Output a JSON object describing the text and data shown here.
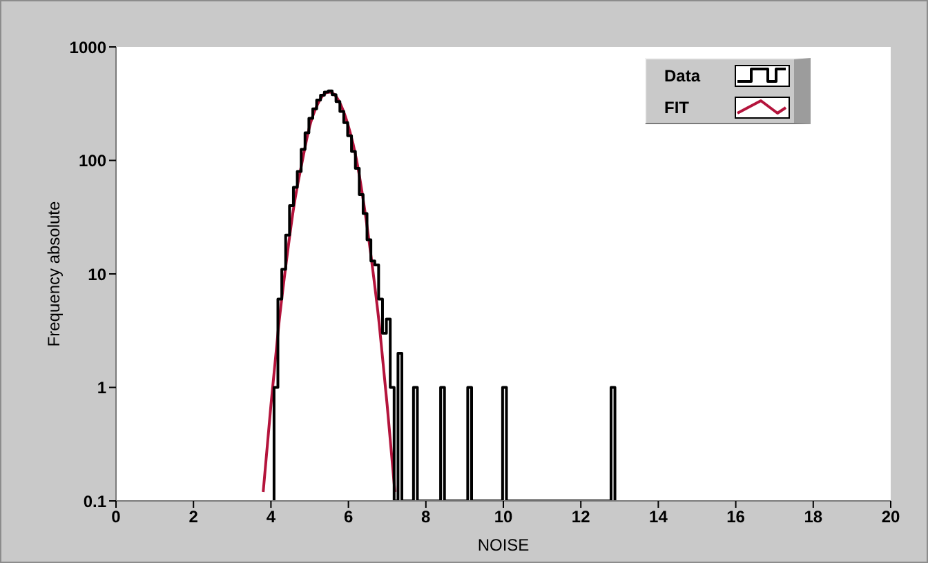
{
  "chart_data": {
    "type": "histogram",
    "xlabel": "NOISE",
    "ylabel": "Frequency absolute",
    "log": "y",
    "legend": "top right",
    "xlim": [
      0,
      20
    ],
    "xticks": [
      0,
      2,
      4,
      6,
      8,
      10,
      12,
      14,
      16,
      18,
      20
    ],
    "ylim": [
      0.1,
      1000
    ],
    "yticks": [
      0.1,
      1,
      10,
      100,
      1000
    ],
    "bins": [
      4.08,
      4.18,
      4.28,
      4.38,
      4.48,
      4.58,
      4.68,
      4.78,
      4.88,
      4.98,
      5.08,
      5.18,
      5.28,
      5.38,
      5.48,
      5.58,
      5.68,
      5.78,
      5.88,
      5.98,
      6.08,
      6.18,
      6.28,
      6.38,
      6.48,
      6.58,
      6.68,
      6.78,
      6.88,
      6.98,
      7.08,
      7.18,
      7.28,
      7.38,
      7.48,
      7.58,
      7.68,
      7.78,
      7.88,
      7.98,
      8.08,
      8.18,
      8.28,
      8.38,
      8.48,
      8.58,
      8.68,
      8.78,
      8.88,
      8.98,
      9.08,
      9.18,
      9.28,
      9.38,
      9.48,
      9.58,
      9.68,
      9.78,
      9.88,
      9.98,
      10.08,
      10.18,
      10.28,
      10.38,
      10.48,
      10.58,
      10.68,
      10.78,
      10.88,
      10.98,
      11.08,
      11.18,
      11.28,
      11.38,
      11.48,
      11.58,
      11.68,
      11.78,
      11.88,
      11.98,
      12.08,
      12.18,
      12.28,
      12.38,
      12.48,
      12.58,
      12.68,
      12.78,
      12.88
    ],
    "series": [
      {
        "name": "Data",
        "color": "#000000",
        "values": [
          1,
          6,
          11,
          22,
          40,
          58,
          80,
          125,
          175,
          235,
          285,
          340,
          375,
          400,
          410,
          380,
          330,
          270,
          215,
          165,
          120,
          85,
          50,
          34,
          20,
          13,
          12,
          6,
          3,
          4,
          1,
          0.1,
          2,
          0.1,
          0.1,
          0.1,
          1,
          0.1,
          0.1,
          0.1,
          0.1,
          0.1,
          0.1,
          1,
          0.1,
          0.1,
          0.1,
          0.1,
          0.1,
          0.1,
          1,
          0.1,
          0.1,
          0.1,
          0.1,
          0.1,
          0.1,
          0.1,
          0.1,
          1,
          0.1,
          0.1,
          0.1,
          0.1,
          0.1,
          0.1,
          0.1,
          0.1,
          0.1,
          0.1,
          0.1,
          0.1,
          0.1,
          0.1,
          0.1,
          0.1,
          0.1,
          0.1,
          0.1,
          0.1,
          0.1,
          0.1,
          0.1,
          0.1,
          0.1,
          0.1,
          0.1,
          1
        ]
      },
      {
        "name": "FIT",
        "type": "line",
        "color": "#b4143c",
        "x": [
          3.8,
          4.0,
          4.2,
          4.4,
          4.6,
          4.8,
          5.0,
          5.2,
          5.4,
          5.5,
          5.6,
          5.8,
          6.0,
          6.2,
          6.4,
          6.6,
          6.8,
          7.0,
          7.2
        ],
        "values": [
          0.12,
          0.7,
          3.5,
          13,
          41,
          95,
          200,
          310,
          390,
          400,
          390,
          310,
          200,
          105,
          41,
          13,
          3.5,
          0.7,
          0.12
        ]
      }
    ]
  }
}
